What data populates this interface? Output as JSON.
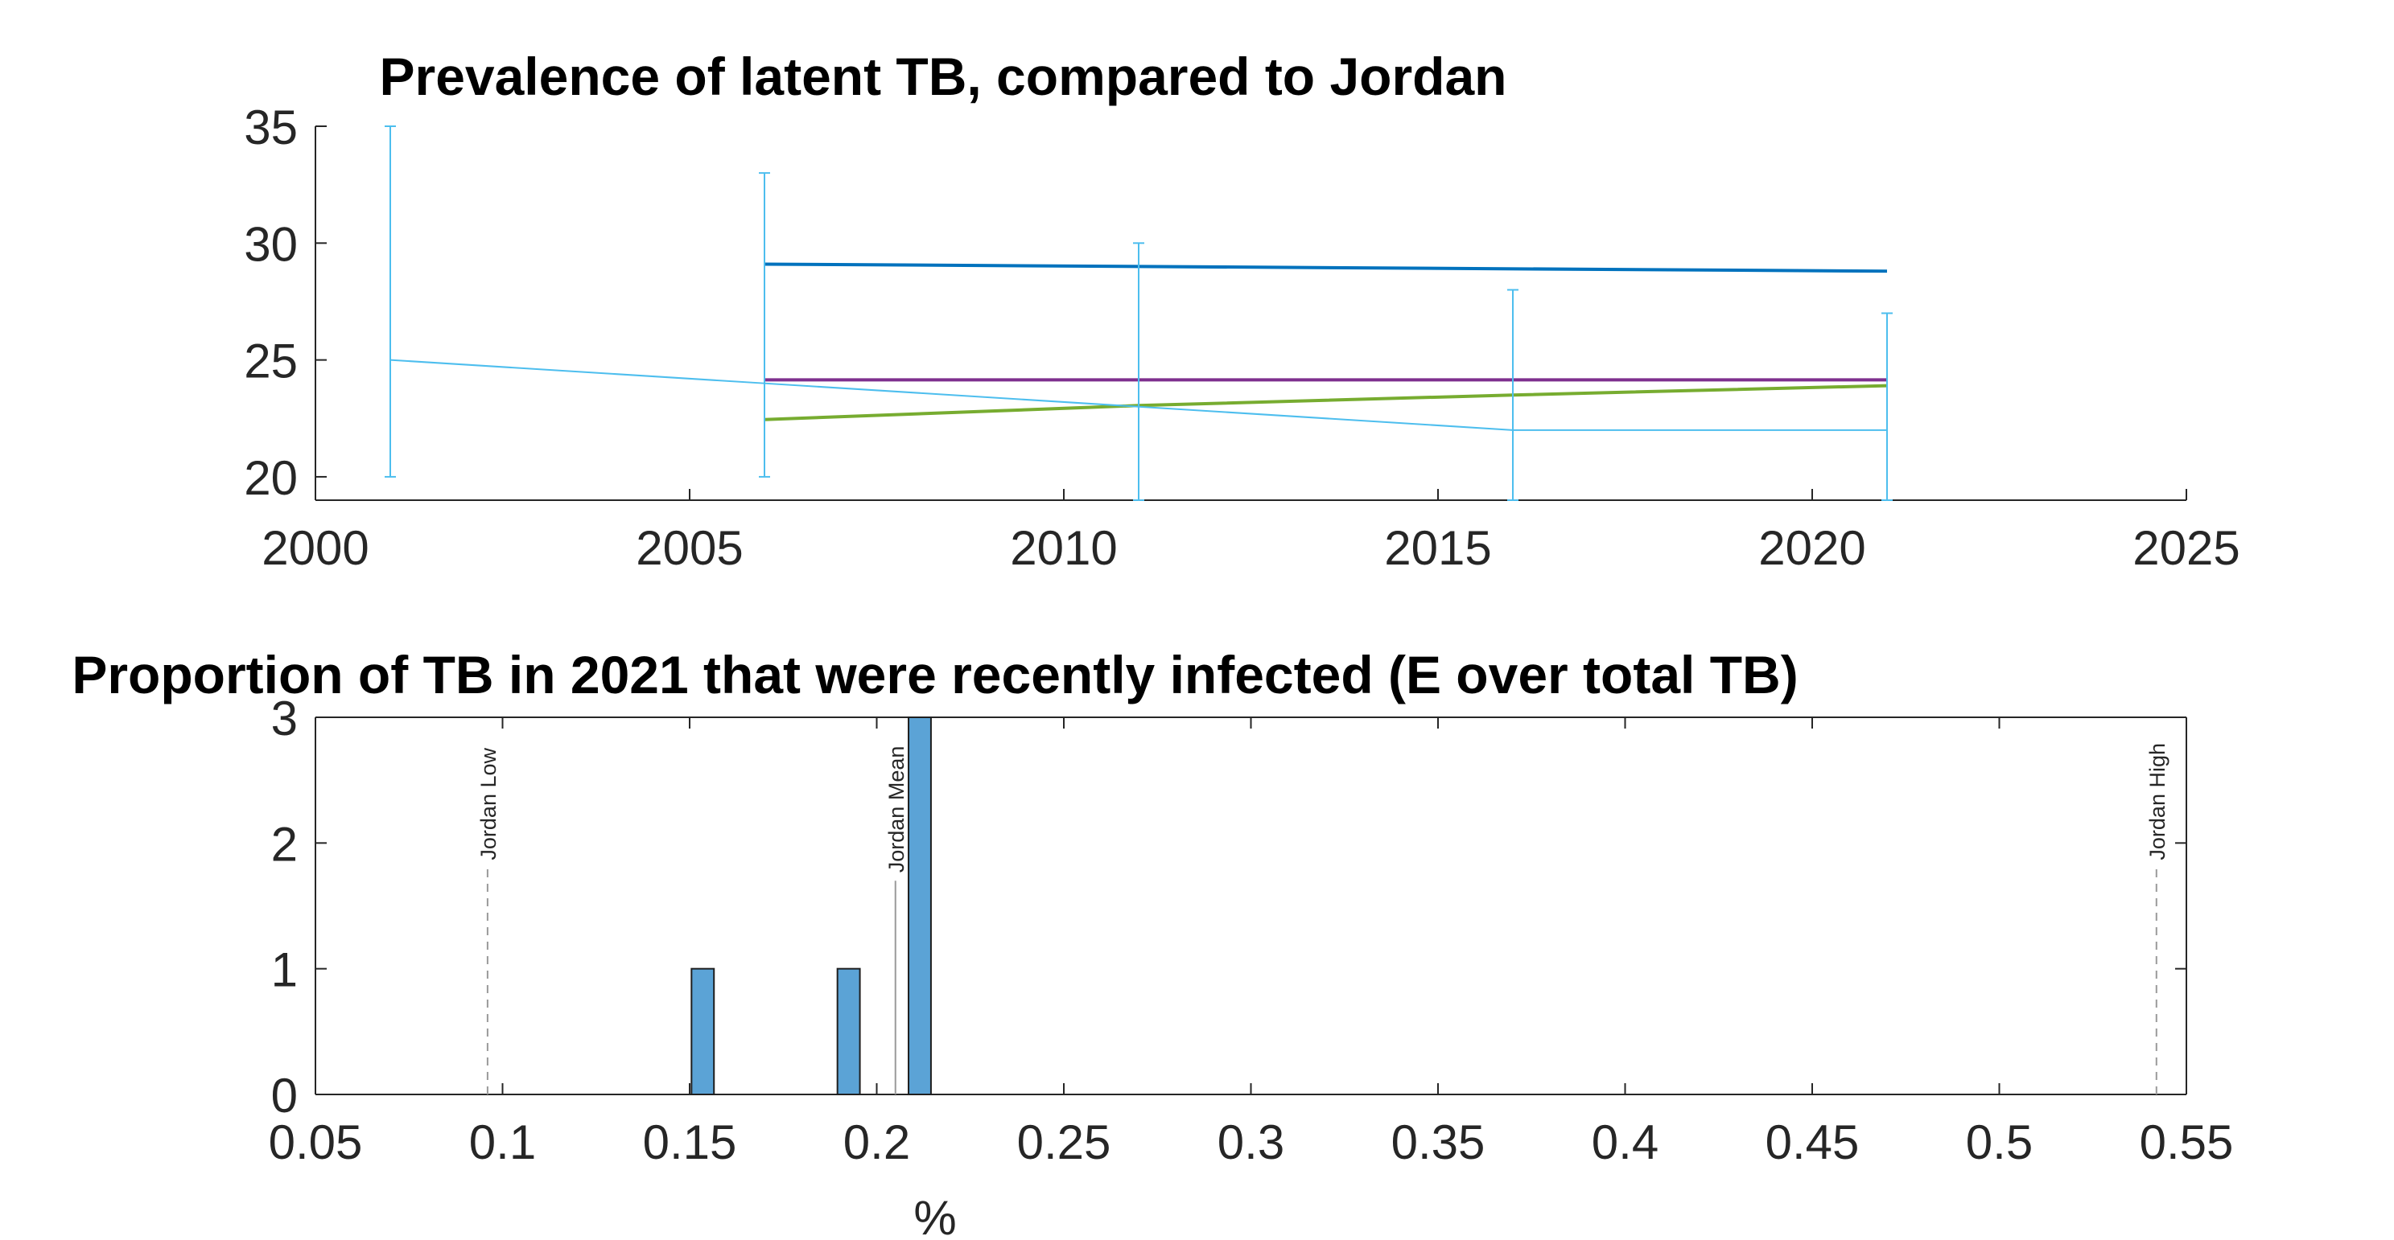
{
  "chart_data": [
    {
      "type": "line",
      "title": "Prevalence of latent TB, compared to Jordan",
      "xlabel": "",
      "ylabel": "",
      "xlim": [
        2000,
        2025
      ],
      "ylim": [
        19,
        35
      ],
      "xticks": [
        2000,
        2005,
        2010,
        2015,
        2020,
        2025
      ],
      "yticks": [
        20,
        25,
        30,
        35
      ],
      "grid": false,
      "series": [
        {
          "color": "#0072BD",
          "x": [
            2006,
            2021
          ],
          "y": [
            29.1,
            28.8
          ]
        },
        {
          "color": "#7E2F8E",
          "x": [
            2006,
            2021
          ],
          "y": [
            24.15,
            24.15
          ]
        },
        {
          "color": "#77AC30",
          "x": [
            2006,
            2011,
            2016,
            2021
          ],
          "y": [
            22.45,
            23.05,
            23.5,
            23.9
          ]
        },
        {
          "color": "#4DBEEE",
          "errorbar": true,
          "x": [
            2001,
            2006,
            2011,
            2016,
            2021
          ],
          "y": [
            25,
            24,
            23,
            22,
            22
          ],
          "lower": [
            20,
            20,
            19,
            19,
            19
          ],
          "upper": [
            35,
            33,
            30,
            28,
            27
          ]
        }
      ]
    },
    {
      "type": "bar",
      "title": "Proportion of TB in 2021 that were recently infected (E over total TB)",
      "xlabel": "%",
      "ylabel": "",
      "xlim": [
        0.05,
        0.55
      ],
      "ylim": [
        0,
        3
      ],
      "xticks": [
        0.05,
        0.1,
        0.15,
        0.2,
        0.25,
        0.3,
        0.35,
        0.4,
        0.45,
        0.5,
        0.55
      ],
      "yticks": [
        0,
        1,
        2,
        3
      ],
      "grid": false,
      "bar_color": "#5BA3D6",
      "bars": [
        {
          "x0": 0.1505,
          "x1": 0.1565,
          "value": 1
        },
        {
          "x0": 0.1895,
          "x1": 0.1955,
          "value": 1
        },
        {
          "x0": 0.2085,
          "x1": 0.2145,
          "value": 3
        }
      ],
      "reference_lines": [
        {
          "label": "Jordan Low",
          "x": 0.096,
          "style": "dashed",
          "top": 1.8
        },
        {
          "label": "Jordan Mean",
          "x": 0.205,
          "style": "solid",
          "top": 1.7
        },
        {
          "label": "Jordan High",
          "x": 0.542,
          "style": "dashed",
          "top": 1.8
        }
      ]
    }
  ]
}
